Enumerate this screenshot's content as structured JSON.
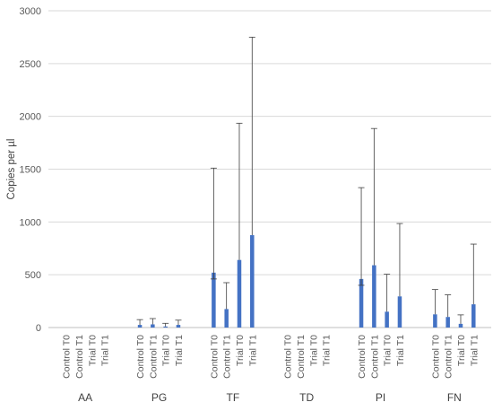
{
  "chart_data": {
    "type": "bar",
    "ylabel": "Copies per µl",
    "ylim": [
      0,
      3000
    ],
    "yticks": [
      0,
      500,
      1000,
      1500,
      2000,
      2500,
      3000
    ],
    "grid": true,
    "groups": [
      "AA",
      "PG",
      "TF",
      "TD",
      "PI",
      "FN"
    ],
    "categories": [
      "Control T0",
      "Control T1",
      "Trial T0",
      "Trial T1"
    ],
    "values": [
      [
        0,
        0,
        0,
        0
      ],
      [
        25,
        30,
        10,
        25
      ],
      [
        520,
        175,
        640,
        875
      ],
      [
        0,
        0,
        0,
        0
      ],
      [
        460,
        590,
        150,
        295
      ],
      [
        125,
        100,
        35,
        220
      ]
    ],
    "error_upper": [
      [
        0,
        0,
        0,
        0
      ],
      [
        50,
        55,
        30,
        45
      ],
      [
        990,
        250,
        1295,
        1875
      ],
      [
        0,
        0,
        0,
        0
      ],
      [
        865,
        1295,
        355,
        690
      ],
      [
        235,
        210,
        85,
        570
      ]
    ],
    "error_lower": [
      [
        0,
        0,
        0,
        0
      ],
      [
        25,
        30,
        10,
        25
      ],
      [
        60,
        175,
        640,
        875
      ],
      [
        0,
        0,
        0,
        0
      ],
      [
        60,
        590,
        150,
        295
      ],
      [
        125,
        100,
        35,
        220
      ]
    ],
    "colors": {
      "bar": "#4472c4",
      "grid": "#d9d9d9",
      "error": "#404040"
    }
  }
}
